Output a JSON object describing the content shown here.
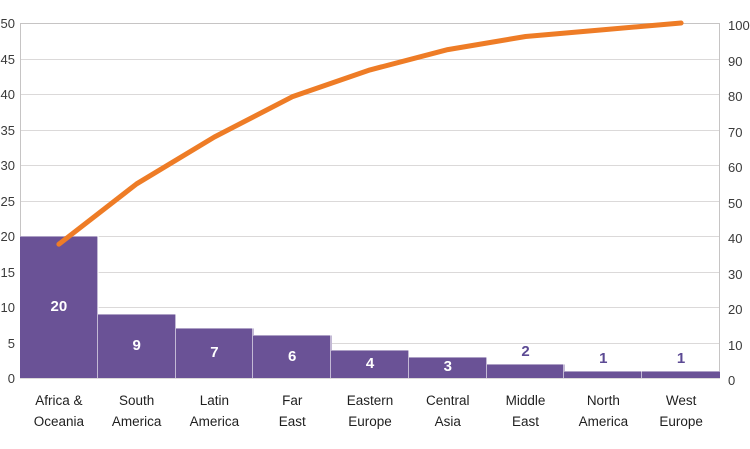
{
  "chart_data": {
    "type": "bar",
    "subtype": "pareto-bar-with-cumulative-line",
    "title": "",
    "xlabel": "",
    "ylabel_left": "",
    "ylabel_right": "",
    "categories": [
      "Africa & Oceania",
      "South America",
      "Latin America",
      "Far East",
      "Eastern Europe",
      "Central Asia",
      "Middle East",
      "North America",
      "West Europe"
    ],
    "category_label_lines": [
      [
        "Africa &",
        "Oceania"
      ],
      [
        "South",
        "America"
      ],
      [
        "Latin",
        "America"
      ],
      [
        "Far",
        "East"
      ],
      [
        "Eastern",
        "Europe"
      ],
      [
        "Central",
        "Asia"
      ],
      [
        "Middle",
        "East"
      ],
      [
        "North",
        "America"
      ],
      [
        "West",
        "Europe"
      ]
    ],
    "series": [
      {
        "name": "count",
        "type": "bar",
        "axis": "left",
        "values": [
          20,
          9,
          7,
          6,
          4,
          3,
          2,
          1,
          1
        ]
      },
      {
        "name": "cumulative-percent",
        "type": "line",
        "axis": "right",
        "values": [
          37.7,
          54.7,
          67.9,
          79.2,
          86.8,
          92.5,
          96.2,
          98.1,
          100
        ]
      }
    ],
    "value_labels": [
      "20",
      "9",
      "7",
      "6",
      "4",
      "3",
      "2",
      "1",
      "1"
    ],
    "value_label_position": [
      "inside",
      "inside",
      "inside",
      "inside",
      "inside",
      "inside",
      "above",
      "above",
      "above"
    ],
    "left_axis": {
      "min": 0,
      "max": 50,
      "step": 5,
      "ticks": [
        "50",
        "45",
        "40",
        "35",
        "30",
        "25",
        "20",
        "15",
        "10",
        "5",
        "0"
      ]
    },
    "right_axis": {
      "min": 0,
      "max": 100,
      "step": 10,
      "ticks": [
        "100",
        "90",
        "80",
        "70",
        "60",
        "50",
        "40",
        "30",
        "20",
        "10",
        "0"
      ]
    },
    "grid": true,
    "legend": null,
    "colors": {
      "bar": "#6A5296",
      "bar_edge": "rgba(255,255,255,0.45)",
      "bar_divider": "rgba(255,255,255,0.6)",
      "line": "#EE7C26",
      "grid": "#DBD9D9",
      "plot_border": "#C6C4C4",
      "axis_text": "#3A3A3A",
      "category_text": "#1F1F1F",
      "value_label_inside": "#FFFFFF",
      "value_label_above": "#5C4A94",
      "background": "#FFFFFF"
    }
  }
}
